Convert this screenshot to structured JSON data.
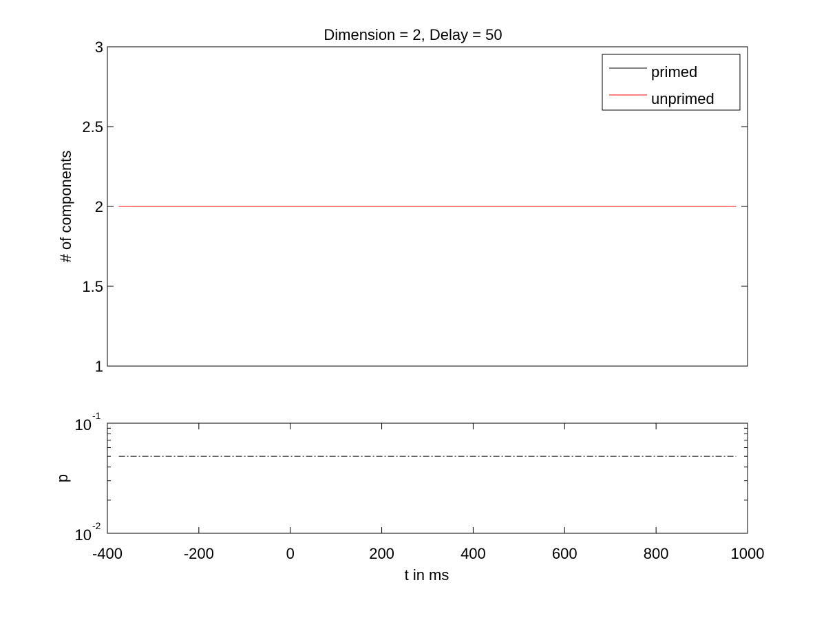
{
  "chart_data": [
    {
      "type": "line",
      "title": "Dimension  = 2, Delay = 50",
      "xlabel": "",
      "ylabel": "# of components",
      "xlim": [
        -400,
        1000
      ],
      "ylim": [
        1,
        3
      ],
      "yticks": [
        "1",
        "1.5",
        "2",
        "2.5",
        "3"
      ],
      "ytick_values": [
        1,
        1.5,
        2,
        2.5,
        3
      ],
      "grid": false,
      "legend_position": "top-right",
      "series": [
        {
          "name": "primed",
          "color": "#000000",
          "x": [
            -375,
            975
          ],
          "y": [
            2,
            2
          ]
        },
        {
          "name": "unprimed",
          "color": "#ff0000",
          "x": [
            -375,
            975
          ],
          "y": [
            2,
            2
          ]
        }
      ]
    },
    {
      "type": "line",
      "xlabel": "t in ms",
      "ylabel": "p",
      "yscale": "log",
      "xlim": [
        -400,
        1000
      ],
      "ylim": [
        0.01,
        0.1
      ],
      "xticks": [
        "-400",
        "-200",
        "0",
        "200",
        "400",
        "600",
        "800",
        "1000"
      ],
      "xtick_values": [
        -400,
        -200,
        0,
        200,
        400,
        600,
        800,
        1000
      ],
      "yticks": [
        {
          "base": "10",
          "exp": "-2",
          "value": 0.01
        },
        {
          "base": "10",
          "exp": "-1",
          "value": 0.1
        }
      ],
      "grid": false,
      "series": [
        {
          "style": "dash-dot",
          "color": "#000000",
          "x": [
            -375,
            975
          ],
          "y": [
            0.05,
            0.05
          ]
        }
      ]
    }
  ]
}
